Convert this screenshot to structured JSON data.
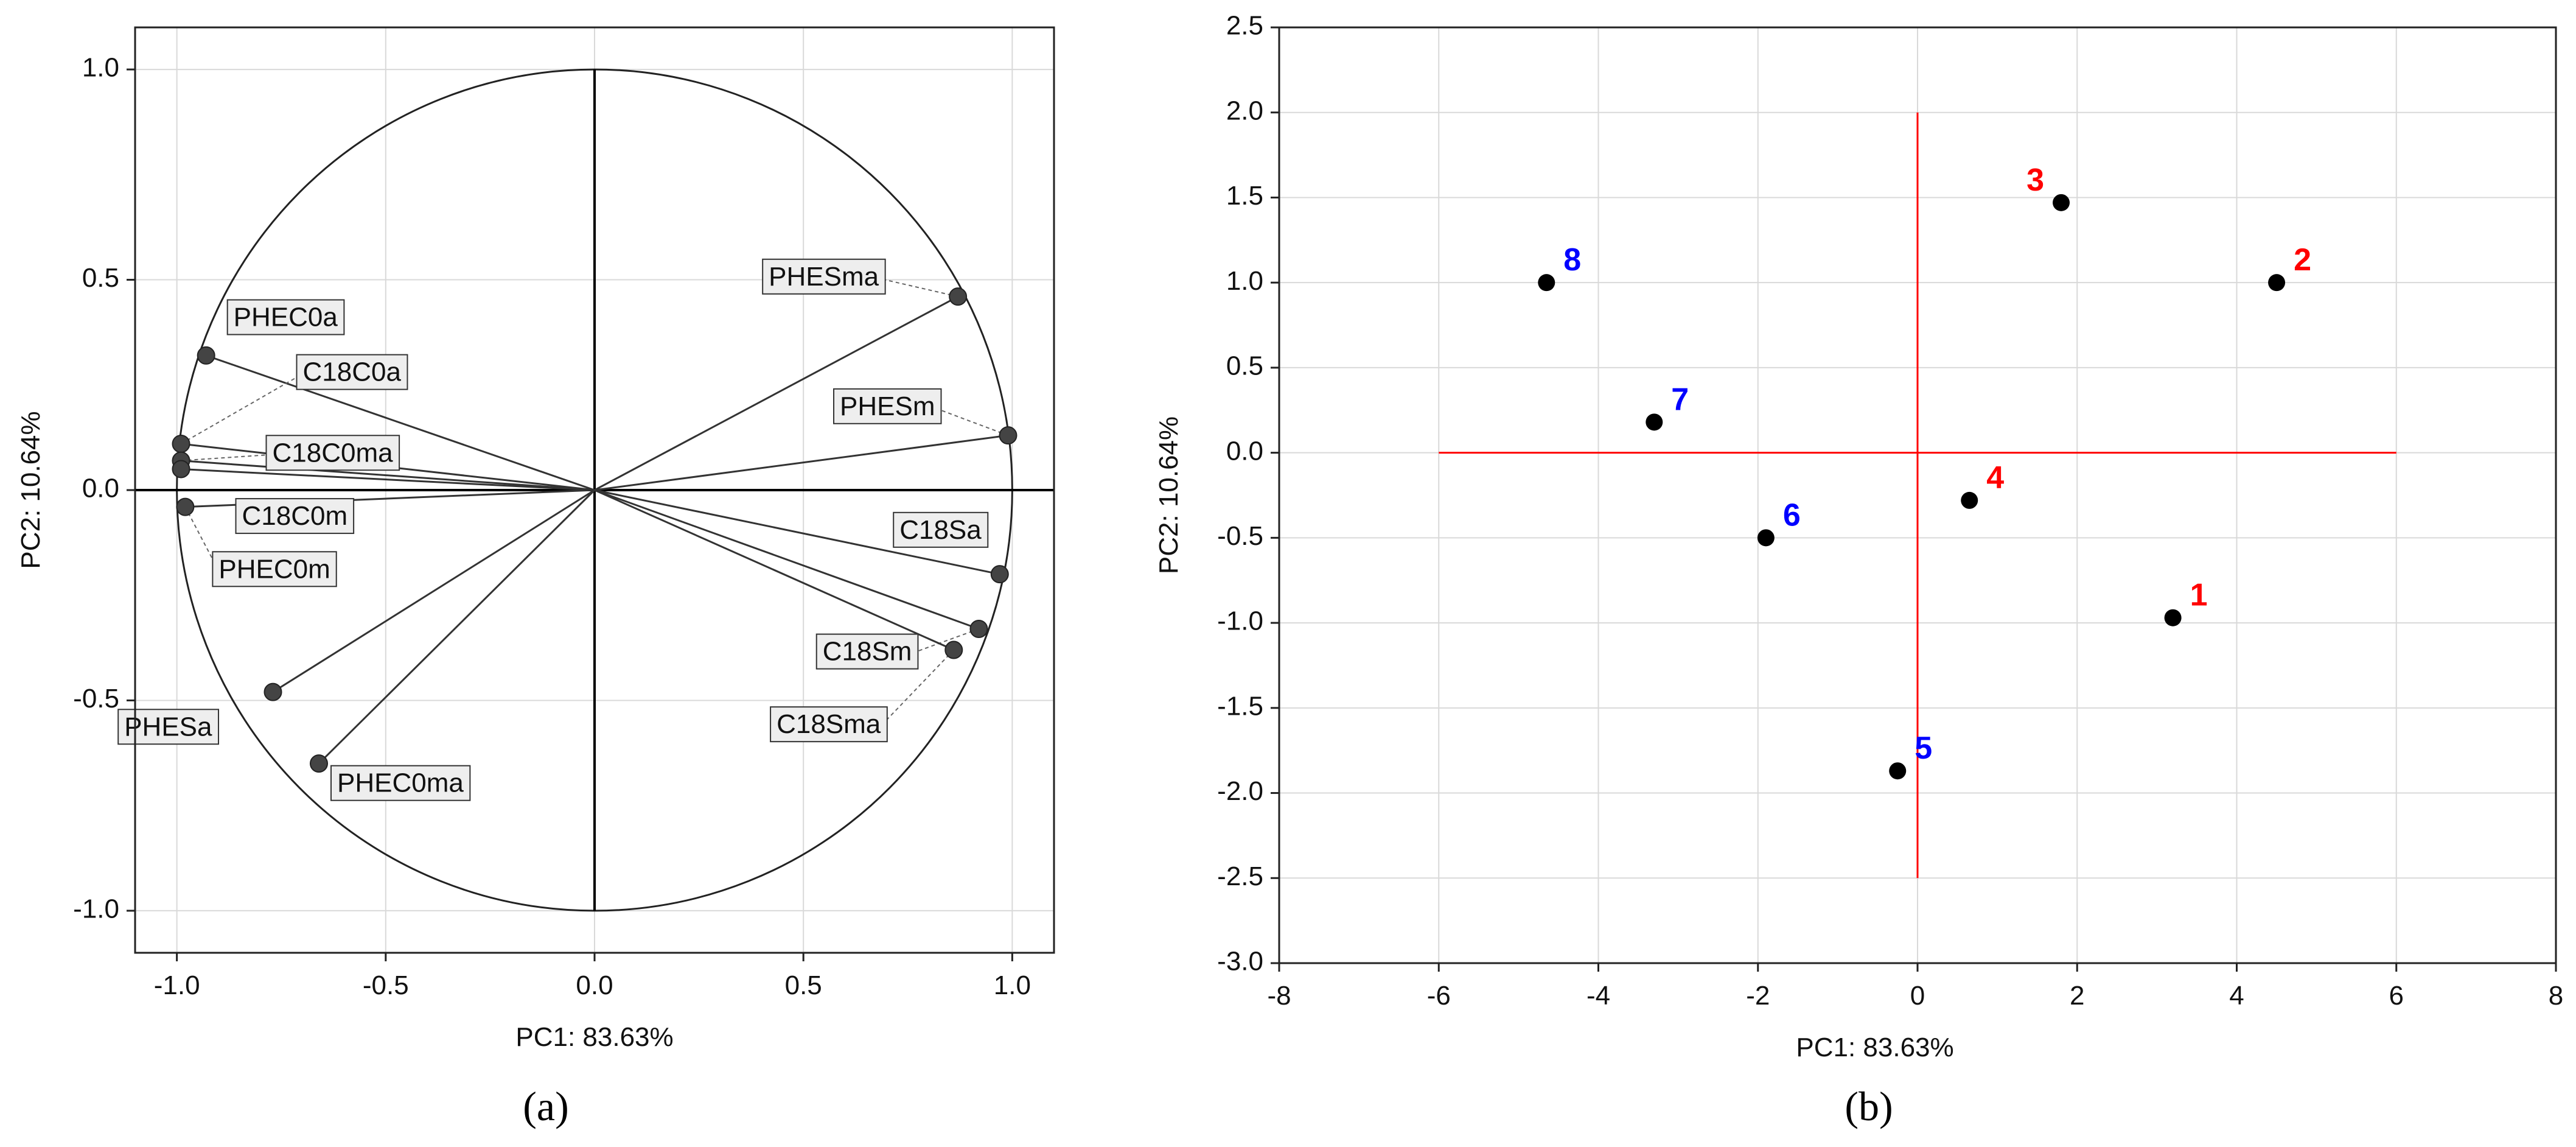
{
  "colors": {
    "circle": "#222222",
    "vector": "#333333",
    "point": "#000000",
    "label_box": "#eeeeee",
    "grid": "#d9d9d9",
    "red": "#ff0000",
    "blue": "#0000ff"
  },
  "chart_data": [
    {
      "panel": "(a)",
      "type": "scatter",
      "title": "",
      "xlabel": "PC1: 83.63%",
      "ylabel": "PC2: 10.64%",
      "xlim": [
        -1.1,
        1.1
      ],
      "ylim": [
        -1.1,
        1.1
      ],
      "xticks": [
        -1.0,
        -0.5,
        0.0,
        0.5,
        1.0
      ],
      "yticks": [
        -1.0,
        -0.5,
        0.0,
        0.5,
        1.0
      ],
      "xtick_labels": [
        "-1.0",
        "-0.5",
        "0.0",
        "0.5",
        "1.0"
      ],
      "ytick_labels": [
        "-1.0",
        "-0.5",
        "0.0",
        "0.5",
        "1.0"
      ],
      "grid": true,
      "unit_circle": true,
      "loadings": [
        {
          "name": "PHEC0a",
          "x": -0.93,
          "y": 0.32,
          "label_side": "upper-right"
        },
        {
          "name": "C18C0a",
          "x": -0.99,
          "y": 0.11,
          "label_side": "upper-right"
        },
        {
          "name": "C18C0ma",
          "x": -0.99,
          "y": 0.07,
          "label_side": "upper-right"
        },
        {
          "name": "C18C0m",
          "x": -0.99,
          "y": 0.05,
          "label_side": "lower-right"
        },
        {
          "name": "PHEC0m",
          "x": -0.98,
          "y": -0.04,
          "label_side": "lower-right"
        },
        {
          "name": "PHESma",
          "x": 0.87,
          "y": 0.46,
          "label_side": "upper-left"
        },
        {
          "name": "PHESm",
          "x": 0.99,
          "y": 0.13,
          "label_side": "upper-left"
        },
        {
          "name": "C18Sa",
          "x": 0.97,
          "y": -0.2,
          "label_side": "upper-left"
        },
        {
          "name": "C18Sm",
          "x": 0.92,
          "y": -0.33,
          "label_side": "lower-left"
        },
        {
          "name": "C18Sma",
          "x": 0.86,
          "y": -0.38,
          "label_side": "lower-left"
        },
        {
          "name": "PHESa",
          "x": -0.77,
          "y": -0.48,
          "label_side": "lower-left"
        },
        {
          "name": "PHEC0ma",
          "x": -0.66,
          "y": -0.65,
          "label_side": "lower-right"
        }
      ]
    },
    {
      "panel": "(b)",
      "type": "scatter",
      "title": "",
      "xlabel": "PC1: 83.63%",
      "ylabel": "PC2: 10.64%",
      "xlim": [
        -8,
        8
      ],
      "ylim": [
        -3.0,
        2.5
      ],
      "xticks": [
        -8,
        -6,
        -4,
        -2,
        0,
        2,
        4,
        6,
        8
      ],
      "yticks": [
        -3.0,
        -2.5,
        -2.0,
        -1.5,
        -1.0,
        -0.5,
        0.0,
        0.5,
        1.0,
        1.5,
        2.0,
        2.5
      ],
      "xtick_labels": [
        "-8",
        "-6",
        "-4",
        "-2",
        "0",
        "2",
        "4",
        "6",
        "8"
      ],
      "ytick_labels": [
        "-3.0",
        "-2.5",
        "-2.0",
        "-1.5",
        "-1.0",
        "-0.5",
        "0.0",
        "0.5",
        "1.0",
        "1.5",
        "2.0",
        "2.5"
      ],
      "grid": true,
      "reference_lines": {
        "horizontal": {
          "y": 0,
          "x_from": -6,
          "x_to": 6
        },
        "vertical": {
          "x": 0,
          "y_from": -2.5,
          "y_to": 2.0
        }
      },
      "points": [
        {
          "label": "1",
          "x": 3.2,
          "y": -0.97,
          "color": "red"
        },
        {
          "label": "2",
          "x": 4.5,
          "y": 1.0,
          "color": "red"
        },
        {
          "label": "3",
          "x": 1.8,
          "y": 1.47,
          "color": "red"
        },
        {
          "label": "4",
          "x": 0.65,
          "y": -0.28,
          "color": "red"
        },
        {
          "label": "5",
          "x": -0.25,
          "y": -1.87,
          "color": "blue"
        },
        {
          "label": "6",
          "x": -1.9,
          "y": -0.5,
          "color": "blue"
        },
        {
          "label": "7",
          "x": -3.3,
          "y": 0.18,
          "color": "blue"
        },
        {
          "label": "8",
          "x": -4.65,
          "y": 1.0,
          "color": "blue"
        }
      ]
    }
  ]
}
